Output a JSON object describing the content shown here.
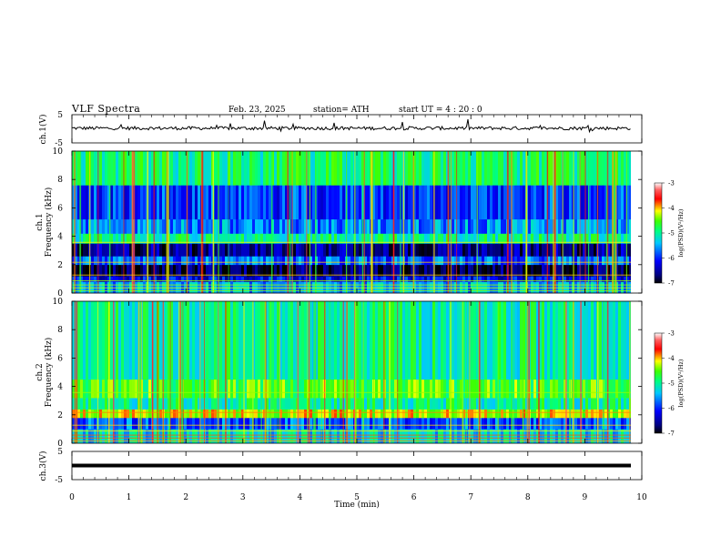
{
  "header": {
    "title": "VLF  Spectra",
    "date": "Feb. 23, 2025",
    "station": "station= ATH",
    "start_ut": "start  UT  =   4  : 20 : 0"
  },
  "chart_data": [
    {
      "type": "line",
      "id": "ch1-waveform",
      "ylabel": "ch.1(V)",
      "ylim": [
        -5,
        5
      ],
      "yticks": [
        "5",
        "-5"
      ],
      "x_range_min": [
        0,
        9.8
      ],
      "description_of_trace": "noisy voltage trace near 0 V with occasional spikes",
      "approx_level_V": 0.2
    },
    {
      "type": "heatmap",
      "id": "ch1-spectrogram",
      "ylabel_line1": "ch.1",
      "ylabel_line2": "Frequency  (kHz)",
      "ylim": [
        0,
        10
      ],
      "yticks": [
        "0",
        "2",
        "4",
        "6",
        "8",
        "10"
      ],
      "colorbar": {
        "label": "log(PSD)(V²/Hz)",
        "range": [
          -7,
          -3
        ],
        "ticks": [
          "-3",
          "-4",
          "-5",
          "-6",
          "-7"
        ]
      },
      "bands_kHz": [
        {
          "from": 0.0,
          "to": 0.8,
          "level": -5.5
        },
        {
          "from": 0.8,
          "to": 1.2,
          "level": -6.2
        },
        {
          "from": 1.2,
          "to": 2.0,
          "level": -6.8
        },
        {
          "from": 2.0,
          "to": 2.6,
          "level": -5.8
        },
        {
          "from": 2.6,
          "to": 3.5,
          "level": -6.6
        },
        {
          "from": 3.5,
          "to": 4.2,
          "level": -5.0
        },
        {
          "from": 4.2,
          "to": 5.2,
          "level": -5.6
        },
        {
          "from": 5.2,
          "to": 7.6,
          "level": -5.9
        },
        {
          "from": 7.6,
          "to": 10.0,
          "level": -4.9
        }
      ]
    },
    {
      "type": "heatmap",
      "id": "ch2-spectrogram",
      "ylabel_line1": "ch.2",
      "ylabel_line2": "Frequency  (kHz)",
      "ylim": [
        0,
        10
      ],
      "yticks": [
        "0",
        "2",
        "4",
        "6",
        "8",
        "10"
      ],
      "colorbar": {
        "label": "log(PSD)(V²/Hz)",
        "range": [
          -7,
          -3
        ],
        "ticks": [
          "-3",
          "-4",
          "-5",
          "-6",
          "-7"
        ]
      },
      "bands_kHz": [
        {
          "from": 0.0,
          "to": 1.0,
          "level": -5.3
        },
        {
          "from": 1.0,
          "to": 1.8,
          "level": -5.8
        },
        {
          "from": 1.8,
          "to": 2.4,
          "level": -4.2
        },
        {
          "from": 2.4,
          "to": 3.2,
          "level": -5.0
        },
        {
          "from": 3.2,
          "to": 4.5,
          "level": -4.6
        },
        {
          "from": 4.5,
          "to": 10.0,
          "level": -5.0
        }
      ]
    },
    {
      "type": "line",
      "id": "ch3-waveform",
      "ylabel": "ch.3(V)",
      "ylim": [
        -5,
        5
      ],
      "yticks": [
        "5",
        "-5"
      ],
      "xlabel": "Time  (min)",
      "xlim": [
        0,
        10
      ],
      "xticks": [
        "0",
        "1",
        "2",
        "3",
        "4",
        "5",
        "6",
        "7",
        "8",
        "9",
        "10"
      ],
      "approx_level_V": -1.0
    }
  ]
}
